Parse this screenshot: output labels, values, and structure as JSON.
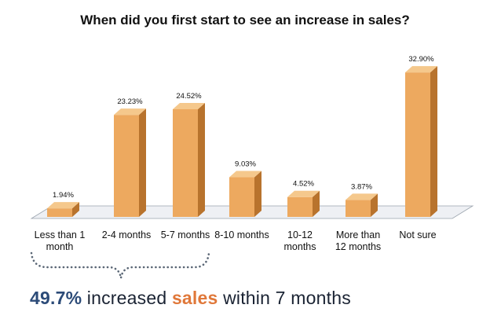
{
  "chart_data": {
    "type": "bar",
    "title": "When did you first start to see an increase in sales?",
    "categories": [
      "Less than 1 month",
      "2-4 months",
      "5-7 months",
      "8-10 months",
      "10-12 months",
      "More than 12 months",
      "Not sure"
    ],
    "category_lines": [
      [
        "Less than 1",
        "month"
      ],
      [
        "2-4 months"
      ],
      [
        "5-7 months"
      ],
      [
        "8-10 months"
      ],
      [
        "10-12",
        "months"
      ],
      [
        "More than",
        "12 months"
      ],
      [
        "Not sure"
      ]
    ],
    "values": [
      1.94,
      23.23,
      24.52,
      9.03,
      4.52,
      3.87,
      32.9
    ],
    "data_labels": [
      "1.94%",
      "23.23%",
      "24.52%",
      "9.03%",
      "4.52%",
      "3.87%",
      "32.90%"
    ],
    "xlabel": "",
    "ylabel": "",
    "ylim": [
      0,
      34
    ],
    "grid": false,
    "legend": "none",
    "bar_style": "3d",
    "colors": {
      "bar_front": "#eda95f",
      "bar_side": "#b8732d",
      "bar_top": "#f5c88c",
      "floor": "#eef0f4",
      "floor_edge": "#9aa3ad"
    }
  },
  "callout": {
    "percent": "49.7%",
    "text1": " increased ",
    "accent_word": "sales",
    "text2": " within 7 months",
    "bracket_categories": [
      "Less than 1 month",
      "2-4 months",
      "5-7 months"
    ],
    "colors": {
      "percent": "#2c4b78",
      "accent": "#e0783a",
      "dots": "#5a6675"
    }
  }
}
